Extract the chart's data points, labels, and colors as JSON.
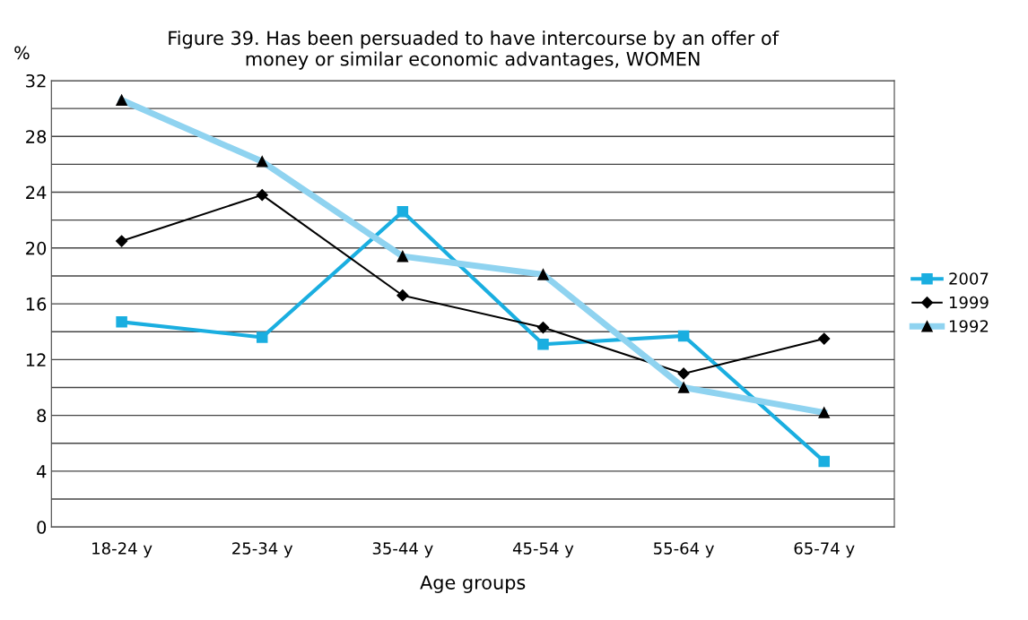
{
  "chart_data": {
    "type": "line",
    "title": "Figure 39. Has been persuaded to have intercourse by an offer of\nmoney or similar economic advantages, WOMEN",
    "xlabel": "Age groups",
    "ylabel": "%",
    "categories": [
      "18-24 y",
      "25-34 y",
      "35-44 y",
      "45-54 y",
      "55-64 y",
      "65-74 y"
    ],
    "series": [
      {
        "name": "2007",
        "color": "#1aaee0",
        "marker": "square",
        "values": [
          14.7,
          13.6,
          22.6,
          13.1,
          13.7,
          4.7
        ]
      },
      {
        "name": "1999",
        "color": "#000000",
        "marker": "diamond",
        "values": [
          20.5,
          23.8,
          16.6,
          14.3,
          11.0,
          13.5
        ]
      },
      {
        "name": "1992",
        "color": "#8fd3f0",
        "marker": "triangle",
        "values": [
          30.6,
          26.2,
          19.4,
          18.1,
          10.0,
          8.2
        ]
      }
    ],
    "ylim": [
      0,
      32
    ],
    "yticks": [
      0,
      {
        "value": 2,
        "label": null
      },
      4,
      {
        "value": 6,
        "label": null
      },
      8,
      {
        "value": 10,
        "label": null
      },
      12,
      {
        "value": 14,
        "label": null
      },
      16,
      {
        "value": 18,
        "label": null
      },
      20,
      {
        "value": 22,
        "label": null
      },
      24,
      {
        "value": 26,
        "label": null
      },
      28,
      {
        "value": 30,
        "label": null
      },
      32
    ],
    "grid": "y",
    "legend": "right",
    "line_style": "solid"
  }
}
